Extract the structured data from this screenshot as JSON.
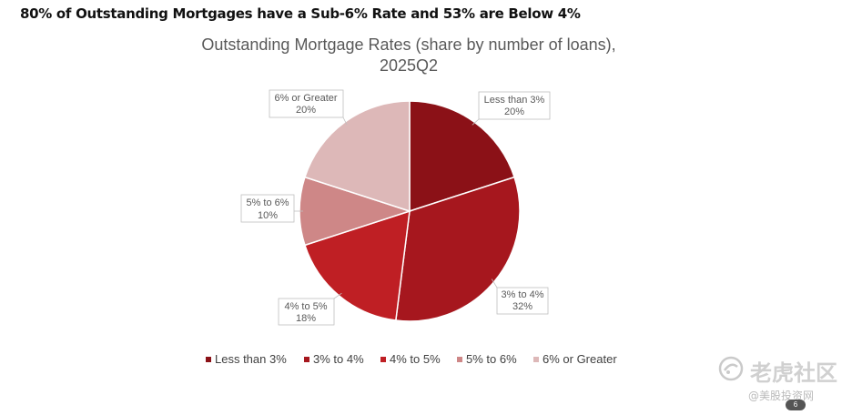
{
  "page": {
    "title": "80% of Outstanding Mortgages have a Sub-6% Rate and 53% are Below 4%",
    "page_number": "6"
  },
  "watermark": {
    "brand": "老虎社区",
    "sub": "@美股投资网"
  },
  "chart_data": {
    "type": "pie",
    "title_lines": [
      "Outstanding Mortgage Rates (share by number of loans),",
      "2025Q2"
    ],
    "categories": [
      "Less than 3%",
      "3% to 4%",
      "4% to 5%",
      "5% to 6%",
      "6% or Greater"
    ],
    "values": [
      20,
      32,
      18,
      10,
      20
    ],
    "value_labels": [
      "20%",
      "32%",
      "18%",
      "10%",
      "20%"
    ],
    "colors": [
      "#8b1117",
      "#a6171e",
      "#bf1f24",
      "#ce8787",
      "#ddb8b8"
    ],
    "legend_position": "bottom"
  }
}
